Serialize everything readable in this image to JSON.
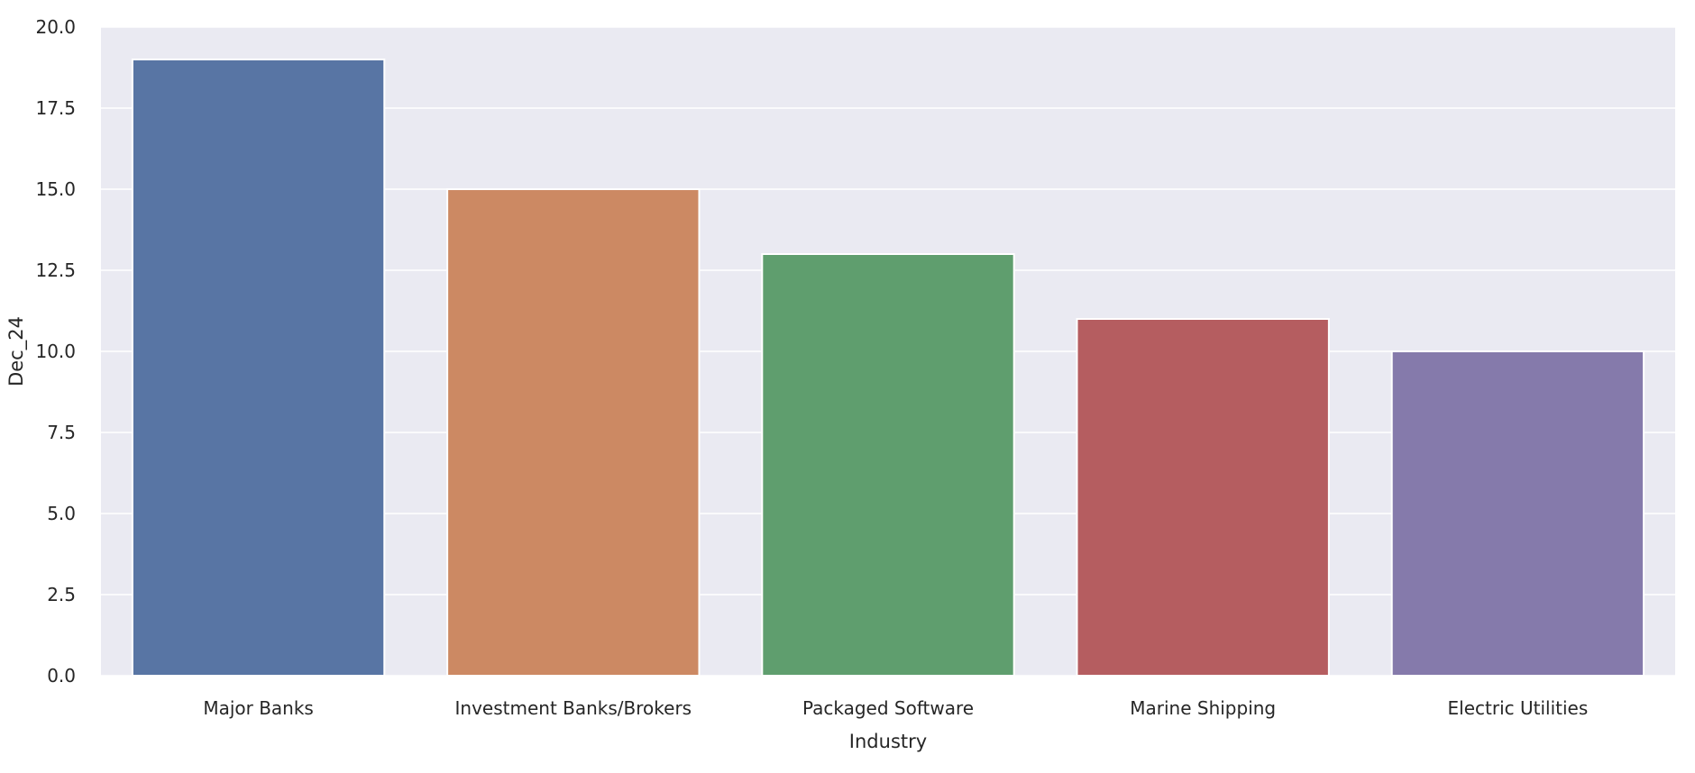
{
  "chart_data": {
    "type": "bar",
    "title": "",
    "xlabel": "Industry",
    "ylabel": "Dec_24",
    "categories": [
      "Major Banks",
      "Investment Banks/Brokers",
      "Packaged Software",
      "Marine Shipping",
      "Electric Utilities"
    ],
    "values": [
      19,
      15,
      13,
      11,
      10
    ],
    "colors": [
      "#5875a4",
      "#cc8963",
      "#5f9e6e",
      "#b55d60",
      "#857aab"
    ],
    "ylim": [
      0,
      20
    ],
    "yticks": [
      "0.0",
      "2.5",
      "5.0",
      "7.5",
      "10.0",
      "12.5",
      "15.0",
      "17.5",
      "20.0"
    ],
    "grid": true,
    "background": "#eaeaf2",
    "grid_color": "#ffffff"
  }
}
